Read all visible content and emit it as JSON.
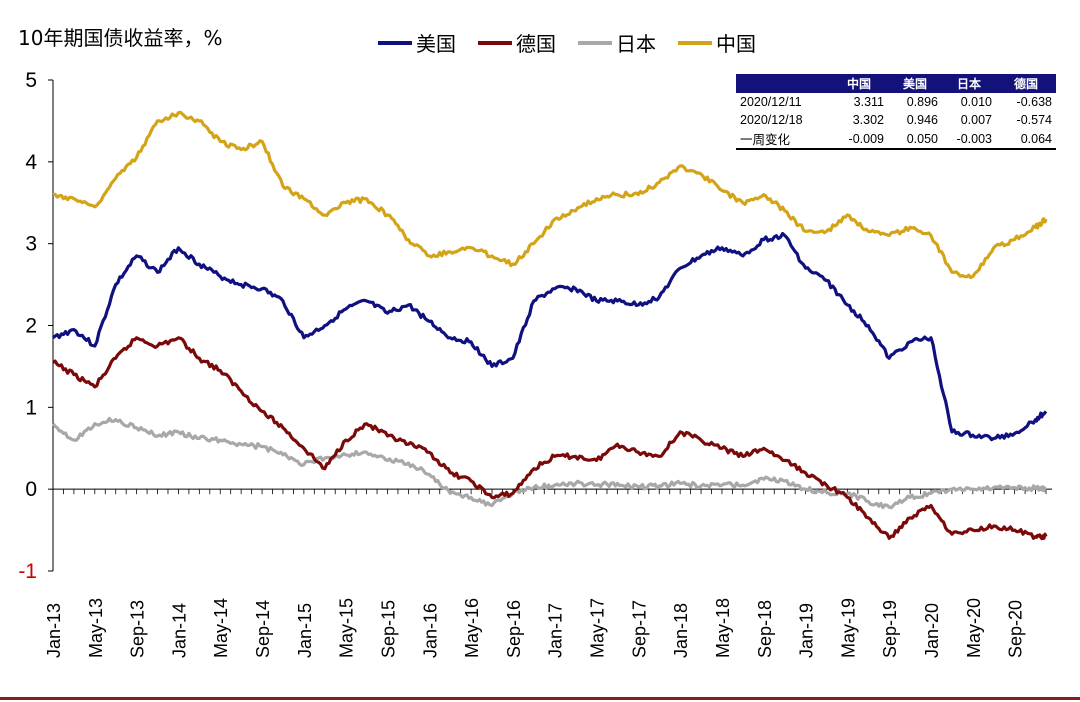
{
  "title": "10年期国债收益率，%",
  "colors": {
    "美国": "#101080",
    "德国": "#7a0a0a",
    "日本": "#a8a8a8",
    "中国": "#d4a418",
    "axis": "#000000",
    "negative_tick": "#cc0000",
    "negative_value": "#e02020",
    "table_header_bg": "#12127a",
    "bottom_rule": "#8b1a1a"
  },
  "table": {
    "headers": [
      "",
      "中国",
      "美国",
      "日本",
      "德国"
    ],
    "rows": [
      {
        "label": "2020/12/11",
        "values": [
          "3.311",
          "0.896",
          "0.010",
          "-0.638"
        ]
      },
      {
        "label": "2020/12/18",
        "values": [
          "3.302",
          "0.946",
          "0.007",
          "-0.574"
        ]
      },
      {
        "label": "一周变化",
        "values": [
          "-0.009",
          "0.050",
          "-0.003",
          "0.064"
        ]
      }
    ]
  },
  "chart_data": {
    "type": "line",
    "title": "10年期国债收益率，%",
    "xlabel": "",
    "ylabel": "",
    "ylim": [
      -1,
      5
    ],
    "yticks": [
      -1,
      0,
      1,
      2,
      3,
      4,
      5
    ],
    "x_tick_labels": [
      "Jan-13",
      "May-13",
      "Sep-13",
      "Jan-14",
      "May-14",
      "Sep-14",
      "Jan-15",
      "May-15",
      "Sep-15",
      "Jan-16",
      "May-16",
      "Sep-16",
      "Jan-17",
      "May-17",
      "Sep-17",
      "Jan-18",
      "May-18",
      "Sep-18",
      "Jan-19",
      "May-19",
      "Sep-19",
      "Jan-20",
      "May-20",
      "Sep-20"
    ],
    "grid": false,
    "legend_position": "top",
    "x": [
      "2013-01",
      "2013-03",
      "2013-05",
      "2013-07",
      "2013-09",
      "2013-11",
      "2014-01",
      "2014-03",
      "2014-05",
      "2014-07",
      "2014-09",
      "2014-11",
      "2015-01",
      "2015-03",
      "2015-05",
      "2015-07",
      "2015-09",
      "2015-11",
      "2016-01",
      "2016-03",
      "2016-05",
      "2016-07",
      "2016-09",
      "2016-11",
      "2017-01",
      "2017-03",
      "2017-05",
      "2017-07",
      "2017-09",
      "2017-11",
      "2018-01",
      "2018-03",
      "2018-05",
      "2018-07",
      "2018-09",
      "2018-11",
      "2019-01",
      "2019-03",
      "2019-05",
      "2019-07",
      "2019-09",
      "2019-11",
      "2020-01",
      "2020-03",
      "2020-05",
      "2020-07",
      "2020-09",
      "2020-11",
      "2020-12"
    ],
    "series": [
      {
        "name": "美国",
        "values": [
          1.85,
          1.95,
          1.75,
          2.5,
          2.85,
          2.65,
          2.95,
          2.75,
          2.6,
          2.5,
          2.45,
          2.3,
          1.85,
          2.0,
          2.2,
          2.3,
          2.15,
          2.25,
          2.05,
          1.85,
          1.8,
          1.5,
          1.6,
          2.3,
          2.45,
          2.45,
          2.3,
          2.3,
          2.25,
          2.35,
          2.7,
          2.85,
          2.95,
          2.85,
          3.05,
          3.1,
          2.7,
          2.55,
          2.25,
          2.0,
          1.6,
          1.8,
          1.85,
          0.7,
          0.66,
          0.62,
          0.68,
          0.85,
          0.95
        ]
      },
      {
        "name": "德国",
        "values": [
          1.55,
          1.4,
          1.25,
          1.6,
          1.85,
          1.75,
          1.85,
          1.6,
          1.45,
          1.2,
          0.95,
          0.75,
          0.5,
          0.25,
          0.6,
          0.8,
          0.65,
          0.55,
          0.45,
          0.2,
          0.1,
          -0.1,
          -0.05,
          0.25,
          0.4,
          0.4,
          0.35,
          0.55,
          0.45,
          0.4,
          0.7,
          0.6,
          0.5,
          0.4,
          0.5,
          0.35,
          0.2,
          0.05,
          -0.1,
          -0.35,
          -0.6,
          -0.35,
          -0.2,
          -0.55,
          -0.5,
          -0.45,
          -0.5,
          -0.58,
          -0.58
        ]
      },
      {
        "name": "日本",
        "values": [
          0.8,
          0.6,
          0.8,
          0.85,
          0.75,
          0.65,
          0.7,
          0.62,
          0.6,
          0.55,
          0.52,
          0.42,
          0.3,
          0.38,
          0.42,
          0.45,
          0.35,
          0.32,
          0.18,
          -0.05,
          -0.1,
          -0.2,
          -0.05,
          0.02,
          0.05,
          0.07,
          0.05,
          0.07,
          0.03,
          0.04,
          0.07,
          0.04,
          0.05,
          0.05,
          0.12,
          0.1,
          0.0,
          -0.04,
          -0.05,
          -0.15,
          -0.22,
          -0.1,
          -0.05,
          0.0,
          0.0,
          0.02,
          0.02,
          0.01,
          0.01
        ]
      },
      {
        "name": "中国",
        "values": [
          3.6,
          3.55,
          3.45,
          3.8,
          4.05,
          4.5,
          4.6,
          4.5,
          4.25,
          4.15,
          4.25,
          3.7,
          3.55,
          3.35,
          3.5,
          3.55,
          3.35,
          3.05,
          2.85,
          2.9,
          2.95,
          2.85,
          2.75,
          3.0,
          3.3,
          3.4,
          3.55,
          3.6,
          3.6,
          3.75,
          3.95,
          3.85,
          3.65,
          3.5,
          3.6,
          3.4,
          3.15,
          3.15,
          3.35,
          3.15,
          3.1,
          3.2,
          3.1,
          2.65,
          2.6,
          2.95,
          3.05,
          3.2,
          3.3
        ]
      }
    ]
  }
}
